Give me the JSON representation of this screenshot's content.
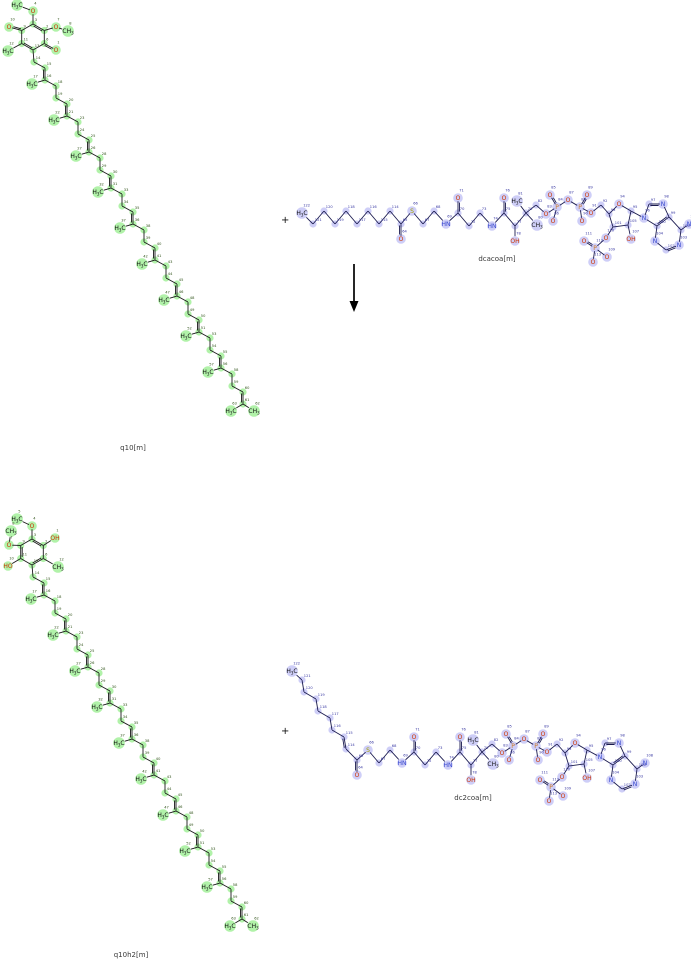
{
  "reaction": {
    "plus": "+",
    "arrow_direction": "down"
  },
  "colors": {
    "q10_highlight": "#a9f1a0",
    "q10_bond": "#1a1a1a",
    "q10_number": "#2d5016",
    "coa_highlight": "#c9c9f6",
    "coa_bond": "#1c1c50",
    "coa_number": "#3434a0",
    "oxygen": "#cc3300",
    "nitrogen": "#3344cc",
    "phosphorus": "#cc7722",
    "sulfur": "#a0a000",
    "carbon_text": "#111111",
    "label_text": "#3a3a3a",
    "arrow": "#000000"
  },
  "molecules": {
    "q10": {
      "label": "q10[m]",
      "head_atoms": [
        [
          3,
          "C"
        ],
        [
          2,
          "C"
        ],
        [
          6,
          "C"
        ],
        [
          13,
          "C"
        ],
        [
          11,
          "C"
        ],
        [
          9,
          "C"
        ],
        [
          4,
          "O"
        ],
        [
          5,
          "H3C"
        ],
        [
          7,
          "O"
        ],
        [
          8,
          "CH3"
        ],
        [
          1,
          "O2"
        ],
        [
          12,
          "H3C"
        ],
        [
          10,
          "O2"
        ]
      ],
      "chain": [
        [
          14,
          "c"
        ],
        [
          15,
          "d"
        ],
        [
          16,
          "b"
        ],
        [
          17,
          "m"
        ],
        [
          18,
          "c"
        ],
        [
          19,
          "c"
        ],
        [
          20,
          "d"
        ],
        [
          21,
          "b"
        ],
        [
          22,
          "m"
        ],
        [
          23,
          "c"
        ],
        [
          24,
          "c"
        ],
        [
          25,
          "d"
        ],
        [
          26,
          "b"
        ],
        [
          27,
          "m"
        ],
        [
          28,
          "c"
        ],
        [
          29,
          "c"
        ],
        [
          30,
          "d"
        ],
        [
          31,
          "b"
        ],
        [
          32,
          "m"
        ],
        [
          33,
          "c"
        ],
        [
          34,
          "c"
        ],
        [
          35,
          "d"
        ],
        [
          36,
          "b"
        ],
        [
          37,
          "m"
        ],
        [
          38,
          "c"
        ],
        [
          39,
          "c"
        ],
        [
          40,
          "d"
        ],
        [
          41,
          "b"
        ],
        [
          42,
          "m"
        ],
        [
          43,
          "c"
        ],
        [
          44,
          "c"
        ],
        [
          45,
          "d"
        ],
        [
          46,
          "b"
        ],
        [
          47,
          "m"
        ],
        [
          48,
          "c"
        ],
        [
          49,
          "c"
        ],
        [
          50,
          "d"
        ],
        [
          51,
          "b"
        ],
        [
          52,
          "m"
        ],
        [
          53,
          "c"
        ],
        [
          54,
          "c"
        ],
        [
          55,
          "d"
        ],
        [
          56,
          "b"
        ],
        [
          57,
          "m"
        ],
        [
          58,
          "c"
        ],
        [
          59,
          "c"
        ],
        [
          60,
          "d"
        ],
        [
          61,
          "b"
        ],
        [
          62,
          "mr"
        ],
        [
          63,
          "ml"
        ]
      ]
    },
    "q10h2": {
      "label": "q10h2[m]",
      "head_atoms": [
        [
          3,
          "C"
        ],
        [
          2,
          "C"
        ],
        [
          6,
          "C"
        ],
        [
          13,
          "C"
        ],
        [
          11,
          "C"
        ],
        [
          9,
          "C"
        ],
        [
          4,
          "O"
        ],
        [
          5,
          "H3C"
        ],
        [
          1,
          "OH"
        ],
        [
          12,
          "CH3"
        ],
        [
          10,
          "HO"
        ],
        [
          7,
          "O"
        ],
        [
          8,
          "CH3"
        ]
      ],
      "chain": [
        [
          14,
          "c"
        ],
        [
          15,
          "d"
        ],
        [
          16,
          "b"
        ],
        [
          17,
          "m"
        ],
        [
          18,
          "c"
        ],
        [
          19,
          "c"
        ],
        [
          20,
          "d"
        ],
        [
          21,
          "b"
        ],
        [
          22,
          "m"
        ],
        [
          23,
          "c"
        ],
        [
          24,
          "c"
        ],
        [
          25,
          "d"
        ],
        [
          26,
          "b"
        ],
        [
          27,
          "m"
        ],
        [
          28,
          "c"
        ],
        [
          29,
          "c"
        ],
        [
          30,
          "d"
        ],
        [
          31,
          "b"
        ],
        [
          32,
          "m"
        ],
        [
          33,
          "c"
        ],
        [
          34,
          "c"
        ],
        [
          35,
          "d"
        ],
        [
          36,
          "b"
        ],
        [
          37,
          "m"
        ],
        [
          38,
          "c"
        ],
        [
          39,
          "c"
        ],
        [
          40,
          "d"
        ],
        [
          41,
          "b"
        ],
        [
          42,
          "m"
        ],
        [
          43,
          "c"
        ],
        [
          44,
          "c"
        ],
        [
          45,
          "d"
        ],
        [
          46,
          "b"
        ],
        [
          47,
          "m"
        ],
        [
          48,
          "c"
        ],
        [
          49,
          "c"
        ],
        [
          50,
          "d"
        ],
        [
          51,
          "b"
        ],
        [
          52,
          "m"
        ],
        [
          53,
          "c"
        ],
        [
          54,
          "c"
        ],
        [
          55,
          "d"
        ],
        [
          56,
          "b"
        ],
        [
          57,
          "m"
        ],
        [
          58,
          "c"
        ],
        [
          59,
          "c"
        ],
        [
          60,
          "d"
        ],
        [
          61,
          "b"
        ],
        [
          62,
          "mr"
        ],
        [
          63,
          "ml"
        ]
      ]
    },
    "dcacoa": {
      "label": "dcacoa[m]",
      "acyl_atoms": [
        [
          122,
          "H3C"
        ],
        [
          121,
          "C"
        ],
        [
          120,
          "C"
        ],
        [
          119,
          "C"
        ],
        [
          118,
          "C"
        ],
        [
          117,
          "C"
        ],
        [
          116,
          "C"
        ],
        [
          115,
          "C"
        ],
        [
          114,
          "C"
        ],
        [
          65,
          "C"
        ],
        [
          64,
          "O2"
        ]
      ],
      "coa_atoms": [
        [
          66,
          "S"
        ],
        [
          67,
          "C"
        ],
        [
          68,
          "C"
        ],
        [
          69,
          "HN"
        ],
        [
          70,
          "C"
        ],
        [
          71,
          "O2"
        ],
        [
          72,
          "C"
        ],
        [
          73,
          "C"
        ],
        [
          74,
          "HN"
        ],
        [
          75,
          "C"
        ],
        [
          76,
          "O2"
        ],
        [
          77,
          "C"
        ],
        [
          78,
          "OH"
        ],
        [
          79,
          "C"
        ],
        [
          80,
          "CH3"
        ],
        [
          81,
          "H3C"
        ],
        [
          82,
          "C"
        ],
        [
          83,
          "O"
        ],
        [
          84,
          "P"
        ],
        [
          85,
          "O2"
        ],
        [
          86,
          "O"
        ],
        [
          87,
          "O"
        ],
        [
          88,
          "P"
        ],
        [
          89,
          "O2"
        ],
        [
          90,
          "O"
        ],
        [
          91,
          "O"
        ],
        [
          92,
          "C"
        ],
        [
          93,
          "C"
        ],
        [
          94,
          "O"
        ],
        [
          95,
          "C"
        ],
        [
          105,
          "C"
        ],
        [
          107,
          "OH"
        ],
        [
          101,
          "C"
        ],
        [
          110,
          "O"
        ],
        [
          112,
          "P"
        ],
        [
          111,
          "O2"
        ],
        [
          113,
          "O"
        ],
        [
          109,
          "O"
        ],
        [
          96,
          "N"
        ],
        [
          97,
          "C"
        ],
        [
          98,
          "N"
        ],
        [
          99,
          "C"
        ],
        [
          100,
          "C"
        ],
        [
          104,
          "N"
        ],
        [
          102,
          "C"
        ],
        [
          103,
          "N"
        ],
        [
          106,
          "C"
        ],
        [
          108,
          "N"
        ]
      ]
    },
    "dc2coa": {
      "label": "dc2coa[m]",
      "acyl_atoms": [
        [
          122,
          "H3C"
        ],
        [
          121,
          "C"
        ],
        [
          120,
          "C"
        ],
        [
          119,
          "C"
        ],
        [
          118,
          "C"
        ],
        [
          117,
          "C"
        ],
        [
          116,
          "C"
        ],
        [
          115,
          "C"
        ],
        [
          114,
          "C"
        ],
        [
          65,
          "C"
        ],
        [
          64,
          "O2"
        ]
      ],
      "coa_atoms": [
        [
          66,
          "S"
        ],
        [
          67,
          "C"
        ],
        [
          68,
          "C"
        ],
        [
          69,
          "HN"
        ],
        [
          70,
          "C"
        ],
        [
          71,
          "O2"
        ],
        [
          72,
          "C"
        ],
        [
          73,
          "C"
        ],
        [
          74,
          "HN"
        ],
        [
          75,
          "C"
        ],
        [
          76,
          "O2"
        ],
        [
          77,
          "C"
        ],
        [
          78,
          "OH"
        ],
        [
          79,
          "C"
        ],
        [
          80,
          "CH3"
        ],
        [
          81,
          "H3C"
        ],
        [
          82,
          "C"
        ],
        [
          83,
          "O"
        ],
        [
          84,
          "P"
        ],
        [
          85,
          "O2"
        ],
        [
          86,
          "O"
        ],
        [
          87,
          "O"
        ],
        [
          88,
          "P"
        ],
        [
          89,
          "O2"
        ],
        [
          90,
          "O"
        ],
        [
          91,
          "O"
        ],
        [
          92,
          "C"
        ],
        [
          93,
          "C"
        ],
        [
          94,
          "O"
        ],
        [
          95,
          "C"
        ],
        [
          105,
          "C"
        ],
        [
          107,
          "OH"
        ],
        [
          101,
          "C"
        ],
        [
          110,
          "O"
        ],
        [
          112,
          "P"
        ],
        [
          111,
          "O2"
        ],
        [
          113,
          "O"
        ],
        [
          109,
          "O"
        ],
        [
          96,
          "N"
        ],
        [
          97,
          "C"
        ],
        [
          98,
          "N"
        ],
        [
          99,
          "C"
        ],
        [
          100,
          "C"
        ],
        [
          104,
          "N"
        ],
        [
          102,
          "C"
        ],
        [
          103,
          "N"
        ],
        [
          106,
          "C"
        ],
        [
          108,
          "N"
        ]
      ]
    }
  }
}
